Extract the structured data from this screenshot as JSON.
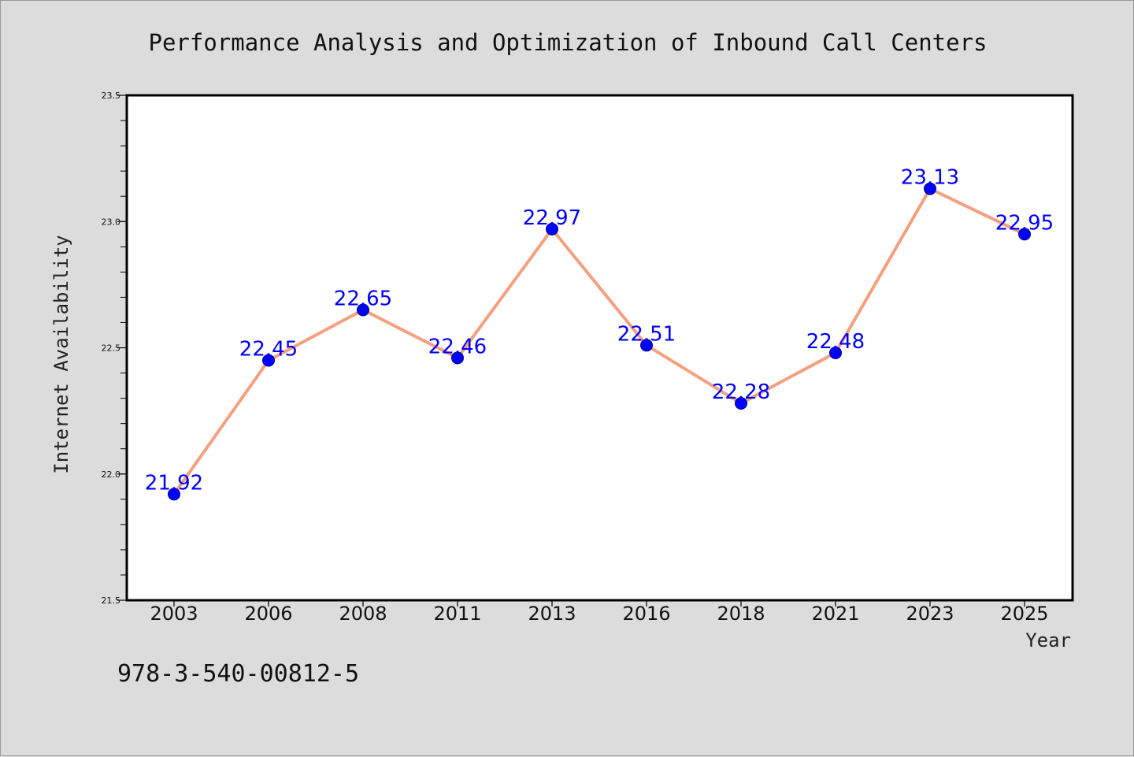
{
  "chart_data": {
    "type": "line",
    "title": "Performance Analysis and Optimization of Inbound Call Centers",
    "xlabel": "Year",
    "ylabel": "Internet Availability",
    "categories": [
      "2003",
      "2006",
      "2008",
      "2011",
      "2013",
      "2016",
      "2018",
      "2021",
      "2023",
      "2025"
    ],
    "values": [
      21.92,
      22.45,
      22.65,
      22.46,
      22.97,
      22.51,
      22.28,
      22.48,
      23.13,
      22.95
    ],
    "data_labels": [
      "21.92",
      "22.45",
      "22.65",
      "22.46",
      "22.97",
      "22.51",
      "22.28",
      "22.48",
      "23.13",
      "22.95"
    ],
    "ylim": [
      21.5,
      23.5
    ],
    "yticks": [
      "21.5",
      "22.0",
      "22.5",
      "23.0",
      "23.5"
    ],
    "grid": false,
    "legend": "none",
    "line_color": "#f4a07f",
    "marker_color": "#0000ff",
    "label_color": "#0000ff"
  },
  "footer": {
    "isbn": "978-3-540-00812-5"
  }
}
